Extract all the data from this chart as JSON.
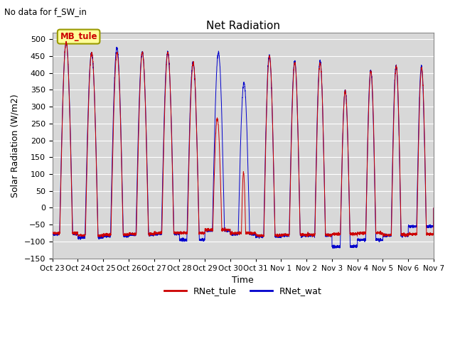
{
  "title": "Net Radiation",
  "suptitle": "No data for f_SW_in",
  "xlabel": "Time",
  "ylabel": "Solar Radiation (W/m2)",
  "ylim": [
    -150,
    520
  ],
  "yticks": [
    -150,
    -100,
    -50,
    0,
    50,
    100,
    150,
    200,
    250,
    300,
    350,
    400,
    450,
    500
  ],
  "legend_labels": [
    "RNet_tule",
    "RNet_wat"
  ],
  "legend_colors": [
    "#cc0000",
    "#0000cc"
  ],
  "annotation_text": "MB_tule",
  "annotation_color": "#cc0000",
  "annotation_bg": "#ffff99",
  "bg_color": "#d8d8d8",
  "line_color_tule": "#cc0000",
  "line_color_wat": "#0000cc",
  "n_days": 15,
  "xlabels": [
    "Oct 23",
    "Oct 24",
    "Oct 25",
    "Oct 26",
    "Oct 27",
    "Oct 28",
    "Oct 29",
    "Oct 30",
    "Oct 31",
    "Nov 1",
    "Nov 2",
    "Nov 3",
    "Nov 4",
    "Nov 5",
    "Nov 6",
    "Nov 7"
  ],
  "grid_color": "#ffffff",
  "figsize": [
    6.4,
    4.8
  ],
  "dpi": 100
}
